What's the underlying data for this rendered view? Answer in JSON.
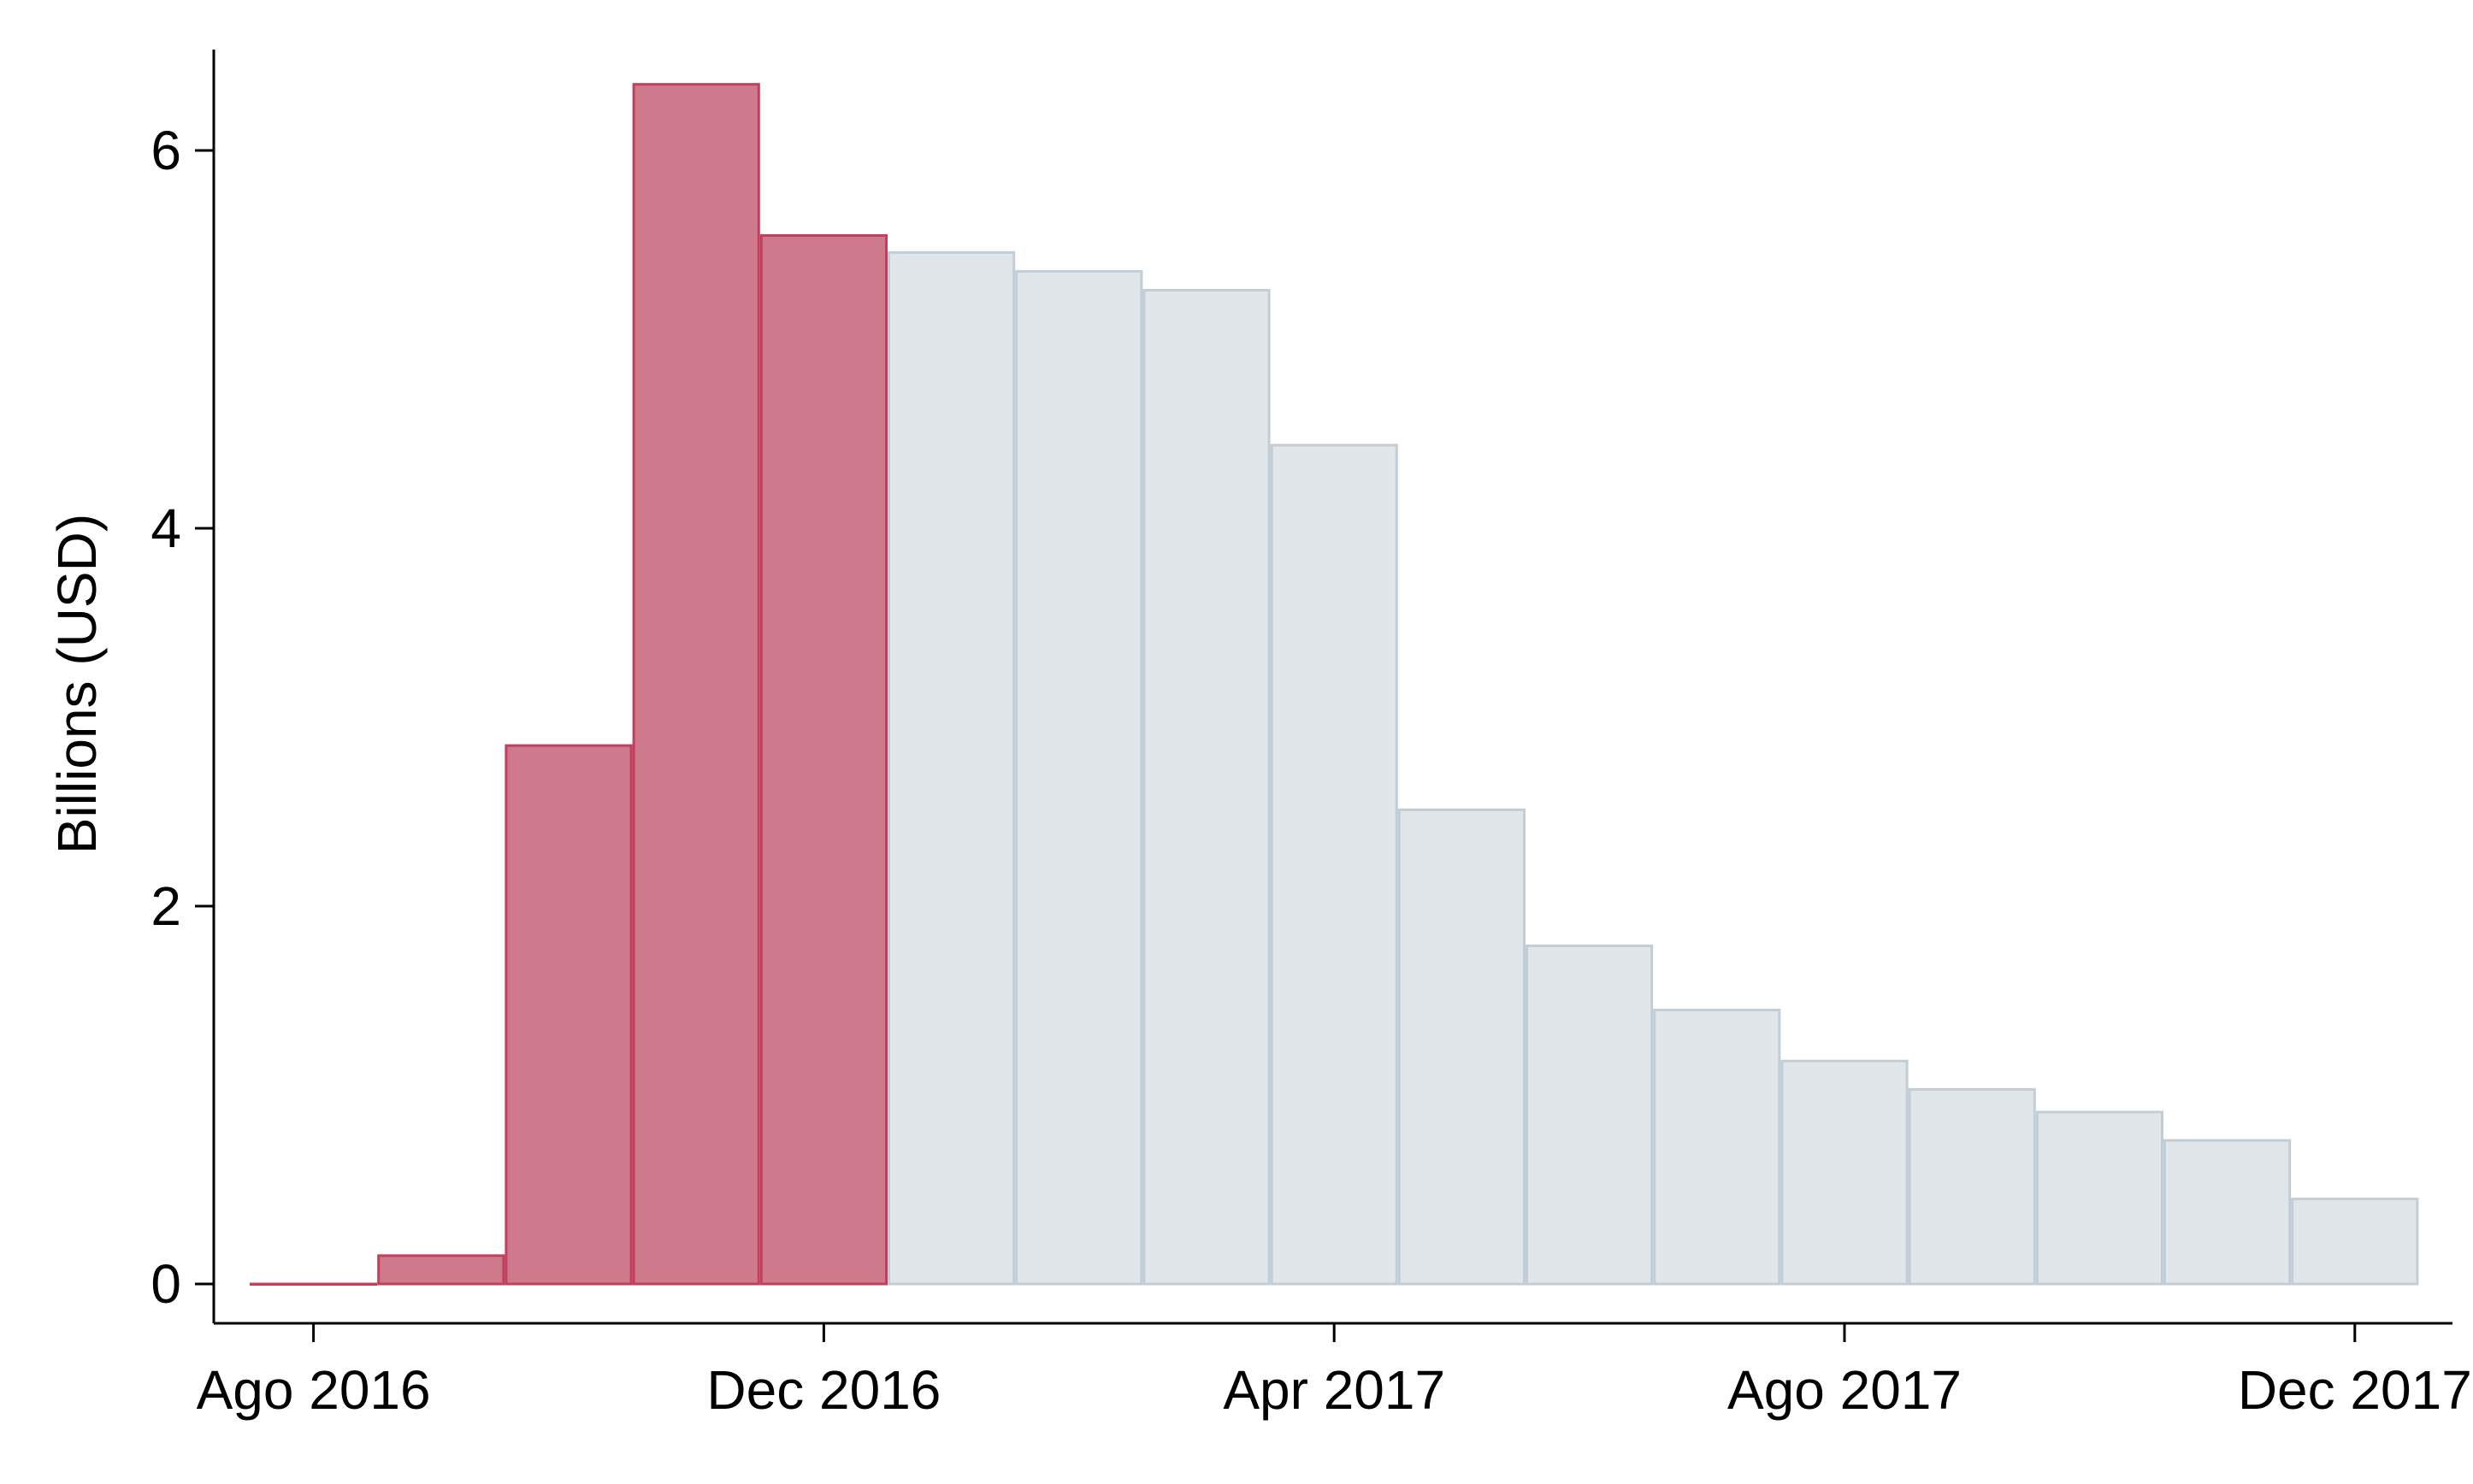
{
  "chart_data": {
    "type": "bar",
    "ylabel": "Billions (USD)",
    "ylim": [
      0,
      6.5
    ],
    "yticks": [
      0,
      2,
      4,
      6
    ],
    "xlim": [
      "2016-07",
      "2017-12"
    ],
    "xticks": [
      {
        "month": "2016-08",
        "label": "Ago 2016"
      },
      {
        "month": "2016-12",
        "label": "Dec 2016"
      },
      {
        "month": "2017-04",
        "label": "Apr 2017"
      },
      {
        "month": "2017-08",
        "label": "Ago 2017"
      },
      {
        "month": "2017-12",
        "label": "Dec 2017"
      }
    ],
    "grid": false,
    "colors": {
      "highlight_fill": "#cf7a8c",
      "highlight_stroke": "#c0405e",
      "normal_fill": "#e1e6ea",
      "normal_stroke": "#c2cdd5"
    },
    "bars": [
      {
        "month": "2016-08",
        "value": 0.0,
        "highlight": true
      },
      {
        "month": "2016-09",
        "value": 0.15,
        "highlight": true
      },
      {
        "month": "2016-10",
        "value": 2.85,
        "highlight": true
      },
      {
        "month": "2016-11",
        "value": 6.35,
        "highlight": true
      },
      {
        "month": "2016-12",
        "value": 5.55,
        "highlight": true
      },
      {
        "month": "2017-01",
        "value": 5.46,
        "highlight": false
      },
      {
        "month": "2017-02",
        "value": 5.36,
        "highlight": false
      },
      {
        "month": "2017-03",
        "value": 5.26,
        "highlight": false
      },
      {
        "month": "2017-04",
        "value": 4.44,
        "highlight": false
      },
      {
        "month": "2017-05",
        "value": 2.51,
        "highlight": false
      },
      {
        "month": "2017-06",
        "value": 1.79,
        "highlight": false
      },
      {
        "month": "2017-07",
        "value": 1.45,
        "highlight": false
      },
      {
        "month": "2017-08",
        "value": 1.18,
        "highlight": false
      },
      {
        "month": "2017-09",
        "value": 1.03,
        "highlight": false
      },
      {
        "month": "2017-10",
        "value": 0.91,
        "highlight": false
      },
      {
        "month": "2017-11",
        "value": 0.76,
        "highlight": false
      },
      {
        "month": "2017-12",
        "value": 0.45,
        "highlight": false
      }
    ]
  }
}
